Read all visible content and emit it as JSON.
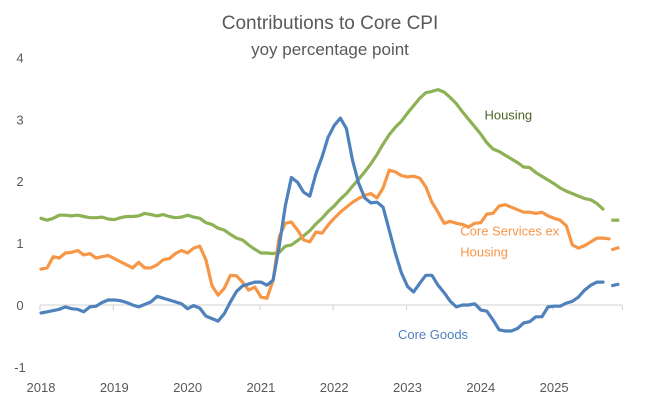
{
  "chart_data": {
    "type": "line",
    "title": "Contributions to Core CPI",
    "subtitle": "yoy percentage point",
    "xlabel": "",
    "ylabel": "",
    "ylim": [
      -1,
      4
    ],
    "xlim": [
      2018,
      2026
    ],
    "grid": false,
    "legend": "inline labels",
    "y_ticks": [
      "4",
      "3",
      "2",
      "1",
      "0",
      "-1"
    ],
    "y_tick_values": [
      4,
      3,
      2,
      1,
      0,
      -1
    ],
    "x_ticks": [
      "2018",
      "2019",
      "2020",
      "2021",
      "2022",
      "2023",
      "2024",
      "2025"
    ],
    "x_tick_values": [
      2018,
      2019,
      2020,
      2021,
      2022,
      2023,
      2024,
      2025
    ],
    "x_start": "2018-01",
    "frequency": "monthly",
    "series": [
      {
        "name": "Housing",
        "label": "Housing",
        "color": "#8DB255",
        "label_color": "#4F6228",
        "label_anchor": [
          2024.05,
          3.0
        ],
        "values": [
          1.4,
          1.37,
          1.4,
          1.45,
          1.45,
          1.44,
          1.45,
          1.43,
          1.41,
          1.41,
          1.42,
          1.39,
          1.38,
          1.41,
          1.43,
          1.43,
          1.44,
          1.48,
          1.46,
          1.44,
          1.46,
          1.43,
          1.41,
          1.42,
          1.45,
          1.42,
          1.4,
          1.33,
          1.3,
          1.24,
          1.21,
          1.14,
          1.08,
          1.05,
          0.97,
          0.9,
          0.84,
          0.84,
          0.83,
          0.85,
          0.95,
          0.97,
          1.04,
          1.12,
          1.2,
          1.31,
          1.4,
          1.51,
          1.6,
          1.71,
          1.8,
          1.92,
          2.03,
          2.15,
          2.28,
          2.43,
          2.6,
          2.75,
          2.87,
          2.97,
          3.1,
          3.22,
          3.34,
          3.43,
          3.45,
          3.48,
          3.44,
          3.35,
          3.25,
          3.12,
          3.0,
          2.88,
          2.76,
          2.62,
          2.52,
          2.48,
          2.42,
          2.36,
          2.3,
          2.23,
          2.22,
          2.14,
          2.08,
          2.02,
          1.96,
          1.89,
          1.84,
          1.8,
          1.76,
          1.72,
          1.7,
          1.64,
          1.55
        ],
        "projection": {
          "x": [
            2025.78,
            2025.89
          ],
          "values": [
            1.37,
            1.37
          ]
        }
      },
      {
        "name": "Core Services ex Housing",
        "label": [
          "Core Services ex",
          "Housing"
        ],
        "color": "#F79646",
        "label_color": "#F79646",
        "label_anchor": [
          2023.72,
          1.12
        ],
        "values": [
          0.58,
          0.6,
          0.78,
          0.76,
          0.84,
          0.85,
          0.88,
          0.81,
          0.83,
          0.76,
          0.78,
          0.8,
          0.75,
          0.7,
          0.65,
          0.6,
          0.69,
          0.6,
          0.6,
          0.65,
          0.73,
          0.75,
          0.83,
          0.88,
          0.84,
          0.92,
          0.95,
          0.73,
          0.31,
          0.16,
          0.27,
          0.48,
          0.47,
          0.37,
          0.24,
          0.29,
          0.13,
          0.11,
          0.4,
          1.1,
          1.32,
          1.34,
          1.21,
          1.05,
          1.02,
          1.18,
          1.16,
          1.29,
          1.4,
          1.5,
          1.58,
          1.66,
          1.72,
          1.77,
          1.8,
          1.73,
          1.89,
          2.18,
          2.15,
          2.09,
          2.07,
          2.08,
          2.05,
          1.91,
          1.66,
          1.5,
          1.32,
          1.35,
          1.32,
          1.3,
          1.26,
          1.32,
          1.33,
          1.47,
          1.48,
          1.6,
          1.62,
          1.58,
          1.54,
          1.5,
          1.5,
          1.48,
          1.5,
          1.44,
          1.4,
          1.37,
          1.28,
          0.97,
          0.92,
          0.96,
          1.02,
          1.08,
          1.08,
          1.07
        ],
        "projection": {
          "x": [
            2025.78,
            2025.89
          ],
          "values": [
            0.89,
            0.93
          ]
        }
      },
      {
        "name": "Core Goods",
        "label": "Core Goods",
        "color": "#4F81BD",
        "label_color": "#4F81BD",
        "label_anchor": [
          2022.87,
          -0.55
        ],
        "values": [
          -0.13,
          -0.11,
          -0.09,
          -0.07,
          -0.03,
          -0.06,
          -0.07,
          -0.11,
          -0.03,
          -0.02,
          0.04,
          0.08,
          0.08,
          0.07,
          0.04,
          0.0,
          -0.03,
          0.01,
          0.05,
          0.14,
          0.11,
          0.08,
          0.05,
          0.02,
          -0.06,
          -0.01,
          -0.05,
          -0.18,
          -0.22,
          -0.26,
          -0.14,
          0.05,
          0.22,
          0.31,
          0.34,
          0.37,
          0.37,
          0.32,
          0.4,
          0.95,
          1.6,
          2.06,
          1.98,
          1.82,
          1.76,
          2.12,
          2.39,
          2.71,
          2.9,
          3.02,
          2.85,
          2.34,
          1.97,
          1.73,
          1.65,
          1.66,
          1.58,
          1.21,
          0.84,
          0.52,
          0.3,
          0.21,
          0.35,
          0.48,
          0.48,
          0.32,
          0.2,
          0.06,
          -0.03,
          0.0,
          0.0,
          0.02,
          -0.08,
          -0.1,
          -0.24,
          -0.4,
          -0.42,
          -0.42,
          -0.38,
          -0.29,
          -0.27,
          -0.19,
          -0.19,
          -0.03,
          -0.02,
          -0.02,
          0.03,
          0.06,
          0.13,
          0.24,
          0.32,
          0.37,
          0.37
        ],
        "projection": {
          "x": [
            2025.78,
            2025.89
          ],
          "values": [
            0.31,
            0.34
          ]
        }
      }
    ],
    "axis_color": "#D9D9D9",
    "text_color": "#595959"
  }
}
